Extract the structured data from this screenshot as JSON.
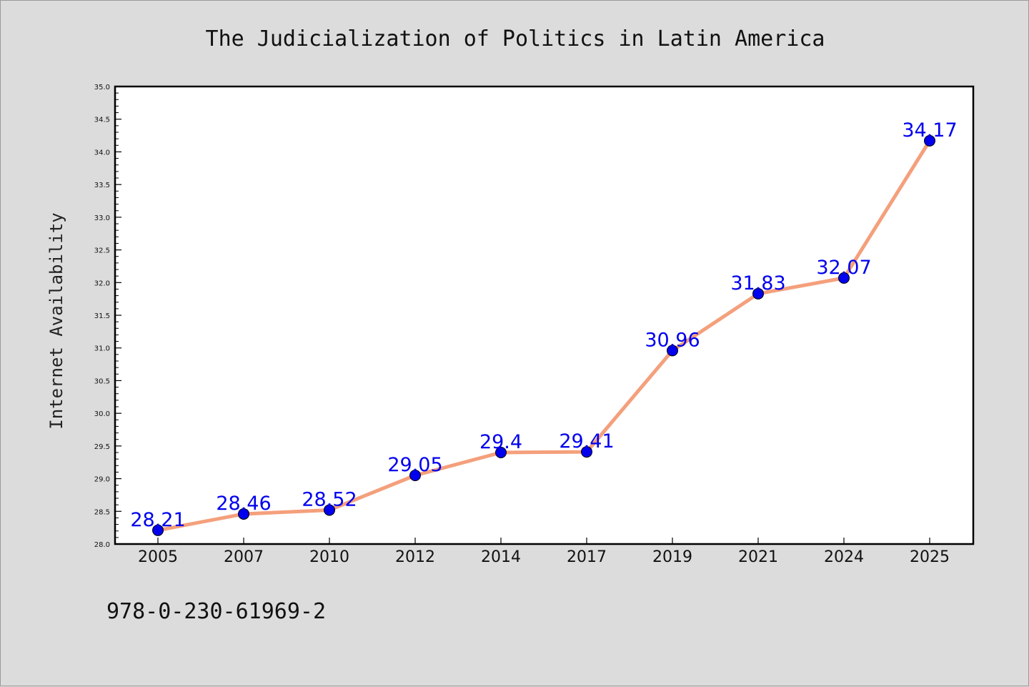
{
  "chart_data": {
    "type": "line",
    "title": "The Judicialization of Politics in Latin America",
    "xlabel": "",
    "ylabel": "Internet Availability",
    "categories": [
      "2005",
      "2007",
      "2010",
      "2012",
      "2014",
      "2017",
      "2019",
      "2021",
      "2024",
      "2025"
    ],
    "series": [
      {
        "values": [
          28.21,
          28.46,
          28.52,
          29.05,
          29.4,
          29.41,
          30.96,
          31.83,
          32.07,
          34.17
        ]
      }
    ],
    "data_labels": [
      "28.21",
      "28.46",
      "28.52",
      "29.05",
      "29.4",
      "29.41",
      "30.96",
      "31.83",
      "32.07",
      "34.17"
    ],
    "ylim": [
      28.0,
      35.0
    ],
    "y_ticks": [
      "28.0",
      "28.5",
      "29.0",
      "29.5",
      "30.0",
      "30.5",
      "31.0",
      "31.5",
      "32.0",
      "32.5",
      "33.0",
      "33.5",
      "34.0",
      "34.5",
      "35.0"
    ],
    "grid": false,
    "legend": "none",
    "line_color": "#f4a07c",
    "marker_color": "#0000ee",
    "label_color": "#0000ee",
    "background_color": "#dcdcdc",
    "plot_background": "#ffffff"
  },
  "footnote": "978-0-230-61969-2"
}
